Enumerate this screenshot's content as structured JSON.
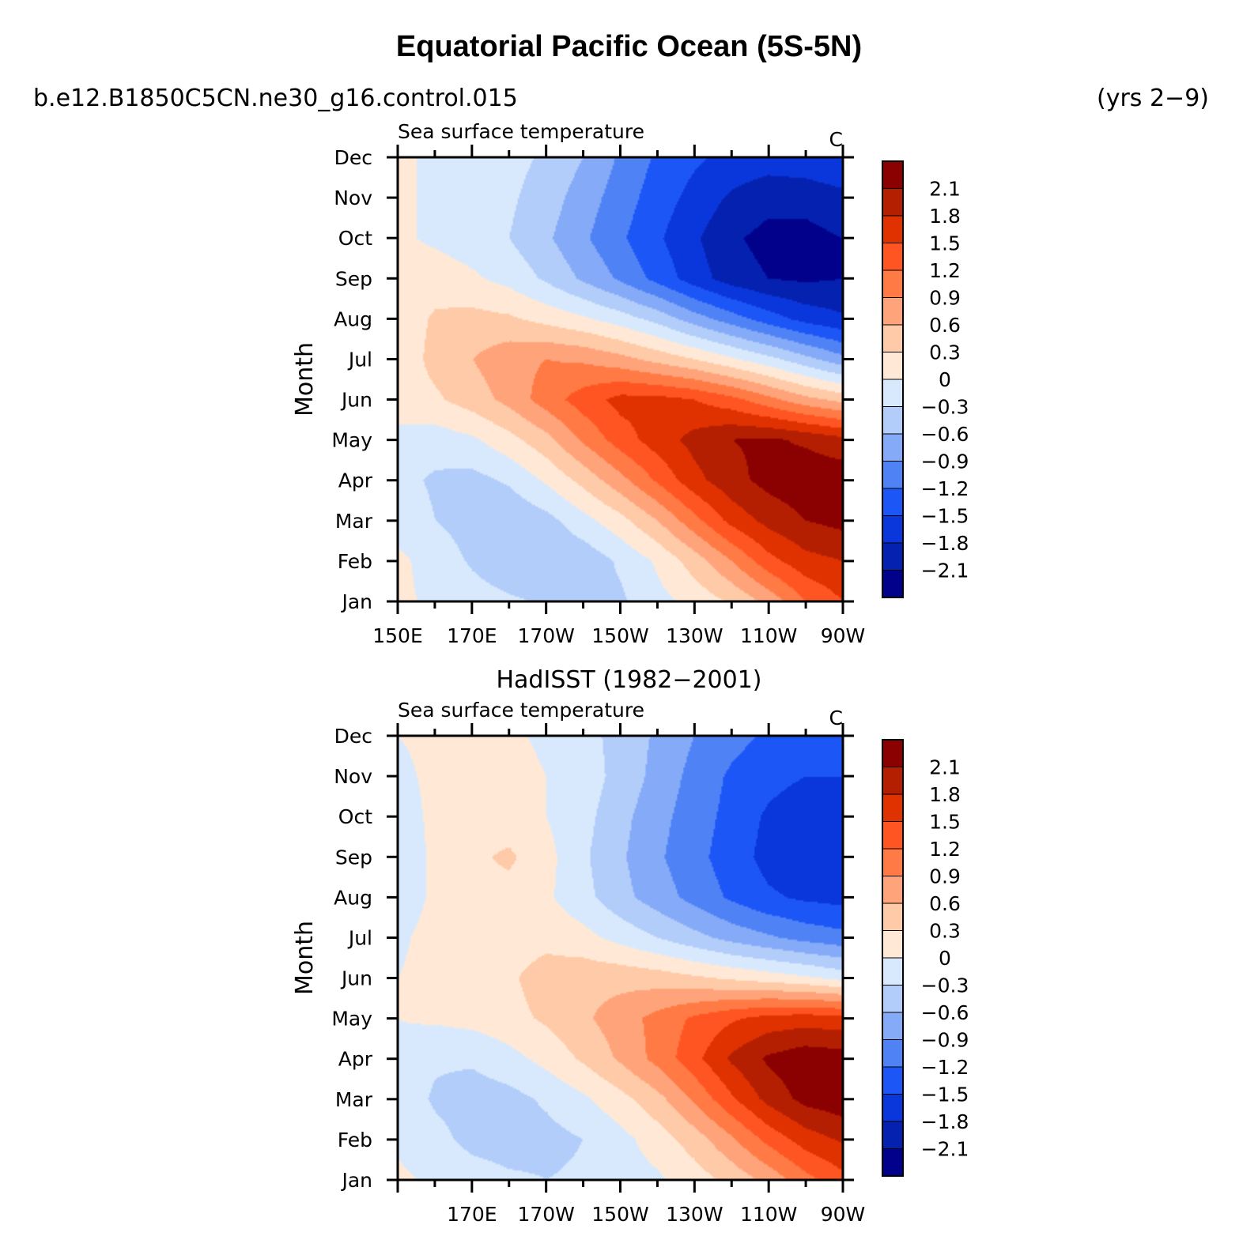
{
  "page": {
    "title": "Equatorial Pacific Ocean (5S-5N)",
    "run_name": "b.e12.B1850C5CN.ne30_g16.control.015",
    "years": "(yrs 2−9)",
    "obs_title": "HadISST (1982−2001)"
  },
  "colorbar": {
    "levels": [
      -2.4,
      -2.1,
      -1.8,
      -1.5,
      -1.2,
      -0.9,
      -0.6,
      -0.3,
      0,
      0.3,
      0.6,
      0.9,
      1.2,
      1.5,
      1.8,
      2.1,
      2.4
    ],
    "labels": [
      "2.1",
      "1.8",
      "1.5",
      "1.2",
      "0.9",
      "0.6",
      "0.3",
      "0",
      "−0.3",
      "−0.6",
      "−0.9",
      "−1.2",
      "−1.5",
      "−1.8",
      "−2.1"
    ],
    "colors_top_to_bottom": [
      "#8b0000",
      "#b31f00",
      "#e03100",
      "#ff5522",
      "#ff7a45",
      "#ffa47a",
      "#ffcaa8",
      "#ffe9d6",
      "#d8e9fd",
      "#b2cdfa",
      "#85aaf7",
      "#4f83f5",
      "#1d56f7",
      "#0a37dc",
      "#0521b0",
      "#01018b"
    ]
  },
  "chart_data": [
    {
      "type": "heatmap",
      "panel": "model",
      "title": "Sea surface temperature",
      "units": "C",
      "ylabel": "Month",
      "xlabel": "",
      "x": [
        "150E",
        "160E",
        "170E",
        "180",
        "170W",
        "160W",
        "150W",
        "140W",
        "130W",
        "120W",
        "110W",
        "100W",
        "90W"
      ],
      "x_tick_labels": [
        "150E",
        "170E",
        "170W",
        "150W",
        "130W",
        "110W",
        "90W"
      ],
      "y": [
        "Jan",
        "Feb",
        "Mar",
        "Apr",
        "May",
        "Jun",
        "Jul",
        "Aug",
        "Sep",
        "Oct",
        "Nov",
        "Dec"
      ],
      "z": [
        [
          0.05,
          -0.05,
          -0.15,
          -0.25,
          -0.35,
          -0.4,
          -0.35,
          -0.1,
          0.1,
          0.35,
          0.7,
          1.2,
          1.5
        ],
        [
          0.05,
          -0.1,
          -0.35,
          -0.55,
          -0.6,
          -0.5,
          -0.25,
          0.05,
          0.45,
          0.9,
          1.4,
          1.7,
          1.8
        ],
        [
          -0.1,
          -0.3,
          -0.45,
          -0.55,
          -0.4,
          -0.1,
          0.2,
          0.6,
          1.1,
          1.6,
          1.9,
          2.1,
          2.2
        ],
        [
          -0.2,
          -0.35,
          -0.4,
          -0.25,
          0.05,
          0.4,
          0.8,
          1.25,
          1.7,
          2.0,
          2.2,
          2.3,
          2.3
        ],
        [
          -0.1,
          -0.15,
          -0.05,
          0.2,
          0.5,
          0.95,
          1.35,
          1.65,
          1.9,
          2.1,
          2.15,
          2.05,
          1.9
        ],
        [
          0.15,
          0.25,
          0.45,
          0.7,
          1.05,
          1.35,
          1.6,
          1.6,
          1.5,
          1.3,
          1.0,
          0.7,
          0.5
        ],
        [
          0.1,
          0.4,
          0.6,
          0.8,
          0.9,
          0.85,
          0.7,
          0.5,
          0.3,
          0.05,
          -0.2,
          -0.5,
          -0.8
        ],
        [
          0.1,
          0.35,
          0.4,
          0.35,
          0.2,
          0.05,
          -0.15,
          -0.4,
          -0.75,
          -1.05,
          -1.35,
          -1.6,
          -1.75
        ],
        [
          0.1,
          0.15,
          0.05,
          -0.1,
          -0.35,
          -0.65,
          -0.95,
          -1.3,
          -1.65,
          -1.95,
          -2.1,
          -2.15,
          -2.1
        ],
        [
          0.05,
          -0.05,
          -0.15,
          -0.3,
          -0.55,
          -0.85,
          -1.15,
          -1.45,
          -1.75,
          -2.05,
          -2.2,
          -2.2,
          -2.1
        ],
        [
          0.05,
          -0.05,
          -0.15,
          -0.25,
          -0.45,
          -0.75,
          -1.05,
          -1.35,
          -1.6,
          -1.85,
          -2.0,
          -2.0,
          -1.9
        ],
        [
          0.05,
          -0.05,
          -0.1,
          -0.2,
          -0.35,
          -0.6,
          -0.95,
          -1.25,
          -1.45,
          -1.6,
          -1.65,
          -1.6,
          -1.5
        ]
      ],
      "zlim": [
        -2.4,
        2.4
      ]
    },
    {
      "type": "heatmap",
      "panel": "observations",
      "title": "Sea surface temperature",
      "units": "C",
      "ylabel": "Month",
      "xlabel": "",
      "x": [
        "150E",
        "160E",
        "170E",
        "180",
        "170W",
        "160W",
        "150W",
        "140W",
        "130W",
        "120W",
        "110W",
        "100W",
        "90W"
      ],
      "x_tick_labels": [
        "170E",
        "170W",
        "150W",
        "130W",
        "110W",
        "90W"
      ],
      "y": [
        "Jan",
        "Feb",
        "Mar",
        "Apr",
        "May",
        "Jun",
        "Jul",
        "Aug",
        "Sep",
        "Oct",
        "Nov",
        "Dec"
      ],
      "z": [
        [
          0.05,
          -0.05,
          -0.15,
          -0.25,
          -0.3,
          -0.25,
          -0.15,
          -0.05,
          0.15,
          0.4,
          0.7,
          1.1,
          1.4
        ],
        [
          -0.05,
          -0.2,
          -0.4,
          -0.45,
          -0.4,
          -0.3,
          -0.1,
          0.15,
          0.45,
          0.85,
          1.3,
          1.65,
          1.85
        ],
        [
          -0.1,
          -0.35,
          -0.45,
          -0.4,
          -0.25,
          -0.05,
          0.2,
          0.5,
          0.95,
          1.45,
          1.9,
          2.2,
          2.3
        ],
        [
          -0.05,
          -0.25,
          -0.25,
          -0.1,
          0.1,
          0.35,
          0.65,
          1.0,
          1.4,
          1.85,
          2.15,
          2.3,
          2.25
        ],
        [
          0.0,
          0.05,
          0.1,
          0.2,
          0.35,
          0.55,
          0.75,
          1.0,
          1.25,
          1.45,
          1.6,
          1.65,
          1.6
        ],
        [
          0.0,
          0.1,
          0.15,
          0.25,
          0.45,
          0.5,
          0.5,
          0.45,
          0.35,
          0.25,
          0.15,
          0.05,
          -0.1
        ],
        [
          -0.05,
          0.1,
          0.15,
          0.15,
          0.2,
          0.1,
          -0.1,
          -0.3,
          -0.5,
          -0.7,
          -0.85,
          -1.0,
          -1.1
        ],
        [
          -0.15,
          0.05,
          0.2,
          0.2,
          0.05,
          -0.2,
          -0.5,
          -0.75,
          -1.0,
          -1.25,
          -1.45,
          -1.55,
          -1.6
        ],
        [
          -0.15,
          0.05,
          0.25,
          0.35,
          0.1,
          -0.25,
          -0.55,
          -0.85,
          -1.1,
          -1.35,
          -1.6,
          -1.75,
          -1.8
        ],
        [
          -0.1,
          0.05,
          0.15,
          0.15,
          0.0,
          -0.2,
          -0.5,
          -0.8,
          -1.05,
          -1.3,
          -1.55,
          -1.7,
          -1.75
        ],
        [
          -0.05,
          0.05,
          0.1,
          0.1,
          0.0,
          -0.15,
          -0.4,
          -0.7,
          -1.0,
          -1.25,
          -1.4,
          -1.5,
          -1.5
        ],
        [
          0.0,
          0.05,
          0.1,
          0.05,
          -0.05,
          -0.2,
          -0.4,
          -0.65,
          -0.9,
          -1.1,
          -1.25,
          -1.3,
          -1.25
        ]
      ],
      "zlim": [
        -2.4,
        2.4
      ]
    }
  ]
}
